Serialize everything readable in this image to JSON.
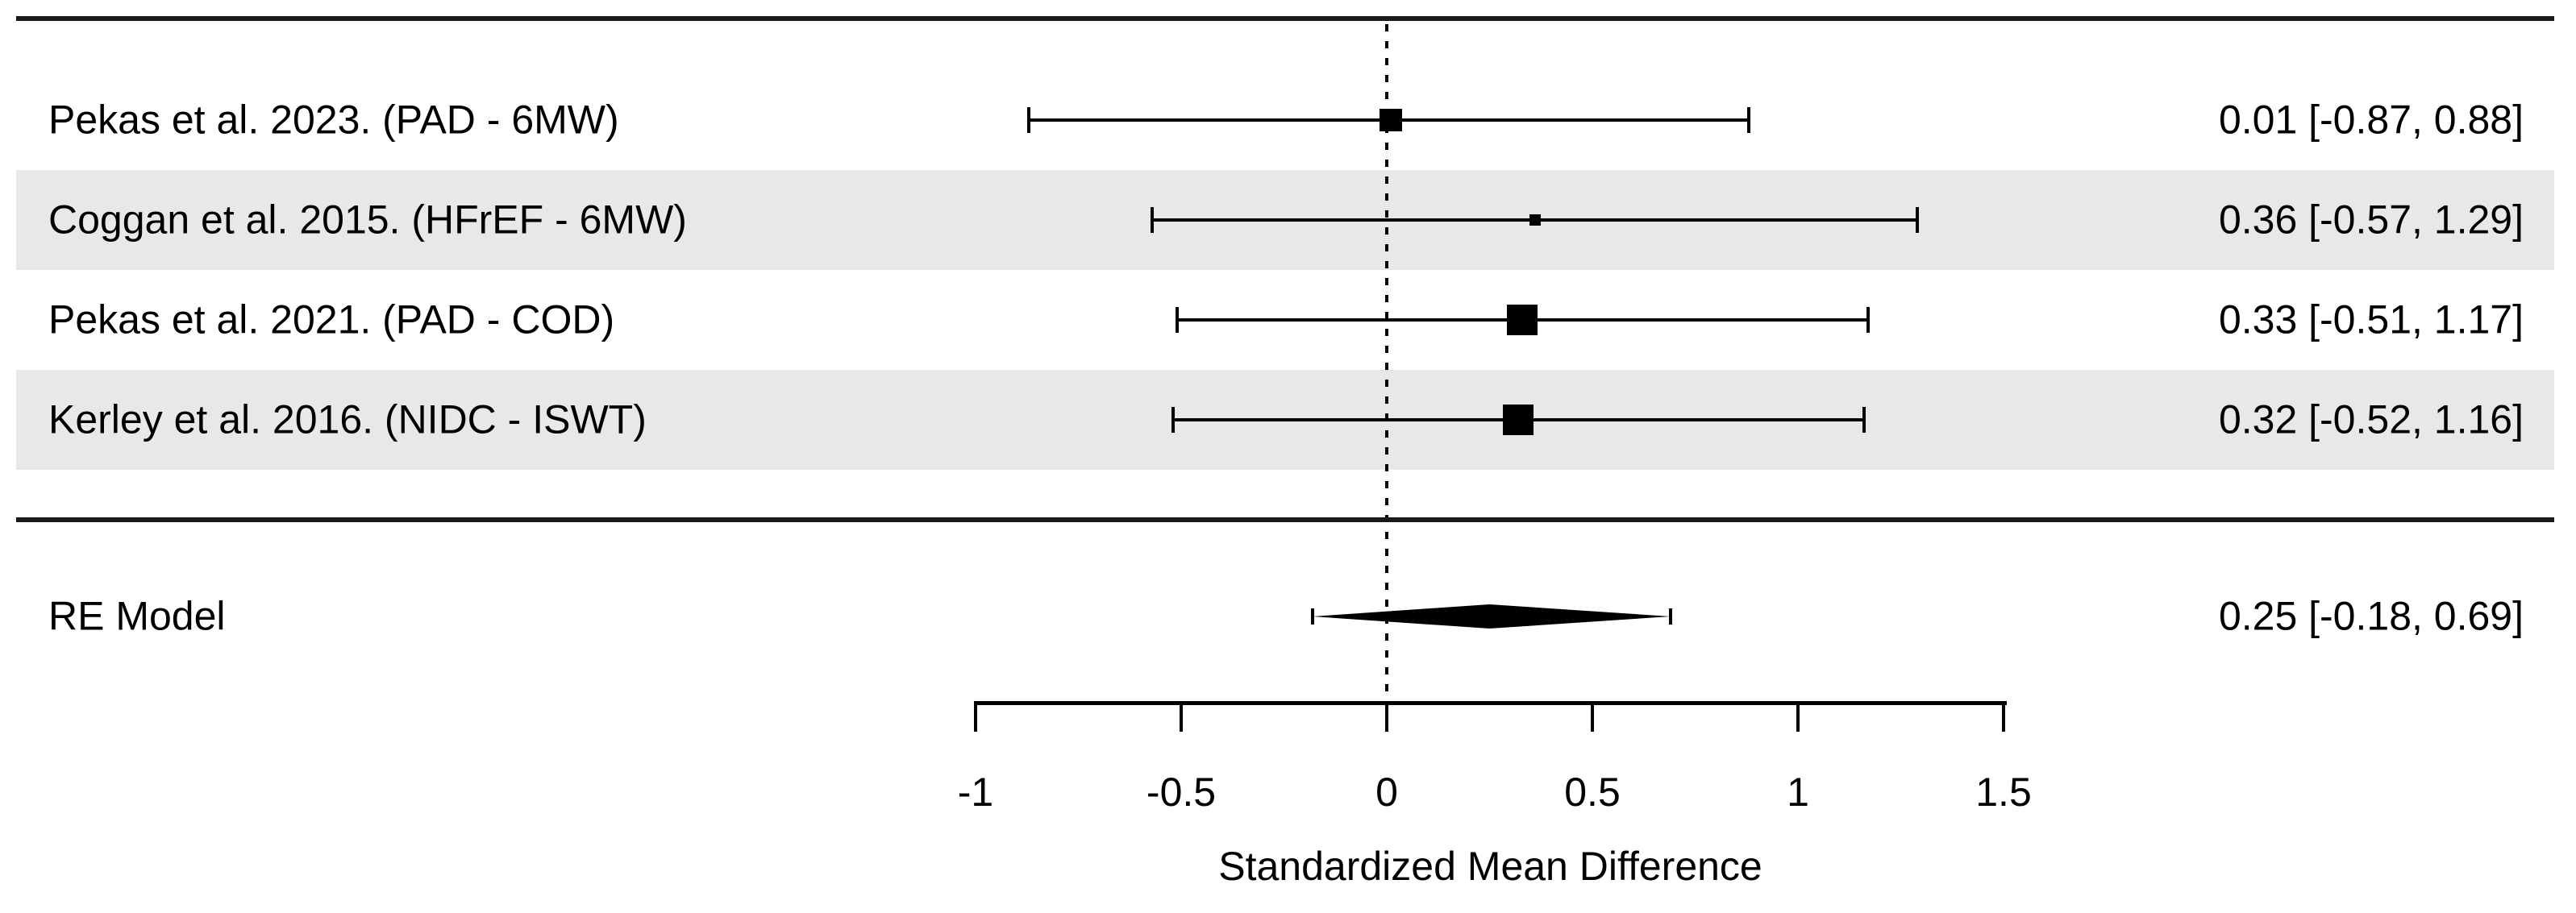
{
  "chart_data": {
    "type": "forest",
    "xlabel": "Standardized Mean Difference",
    "xlim": [
      -1,
      1.5
    ],
    "x_ticks": [
      -1,
      -0.5,
      0,
      0.5,
      1,
      1.5
    ],
    "x_tick_labels": [
      "-1",
      "-0.5",
      "0",
      "0.5",
      "1",
      "1.5"
    ],
    "zero_reference": 0,
    "grid": false,
    "legend": false,
    "studies": [
      {
        "label": "Pekas et al. 2023. (PAD - 6MW)",
        "estimate": 0.01,
        "ci_lower": -0.87,
        "ci_upper": 0.88,
        "annotation": "0.01 [-0.87, 0.88]",
        "marker_size_px": 28,
        "shaded": false
      },
      {
        "label": "Coggan et al. 2015. (HFrEF - 6MW)",
        "estimate": 0.36,
        "ci_lower": -0.57,
        "ci_upper": 1.29,
        "annotation": "0.36 [-0.57, 1.29]",
        "marker_size_px": 14,
        "shaded": true
      },
      {
        "label": "Pekas et al. 2021. (PAD - COD)",
        "estimate": 0.33,
        "ci_lower": -0.51,
        "ci_upper": 1.17,
        "annotation": "0.33 [-0.51, 1.17]",
        "marker_size_px": 38,
        "shaded": false
      },
      {
        "label": "Kerley et al. 2016. (NIDC - ISWT)",
        "estimate": 0.32,
        "ci_lower": -0.52,
        "ci_upper": 1.16,
        "annotation": "0.32 [-0.52, 1.16]",
        "marker_size_px": 38,
        "shaded": true
      }
    ],
    "summary": {
      "label": "RE Model",
      "estimate": 0.25,
      "ci_lower": -0.18,
      "ci_upper": 0.69,
      "annotation": "0.25 [-0.18, 0.69]"
    }
  },
  "colors": {
    "ink": "#000000",
    "rule": "#1a1a1a",
    "row_band": "#e8e8e8",
    "background": "#ffffff"
  }
}
